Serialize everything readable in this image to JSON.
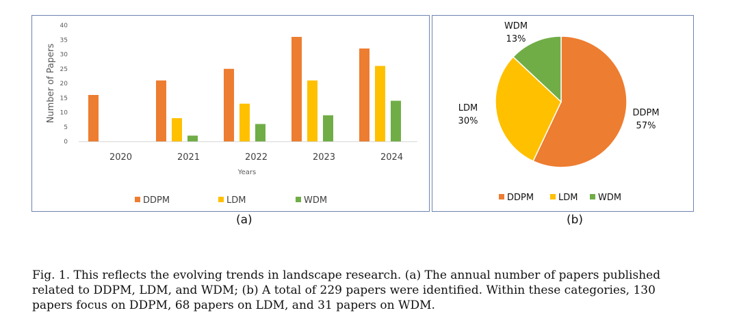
{
  "chart_data": [
    {
      "type": "bar",
      "xlabel": "Years",
      "ylabel": "Number of Papers",
      "ylim": [
        0,
        40
      ],
      "yticks": [
        0,
        5,
        10,
        15,
        20,
        25,
        30,
        35,
        40
      ],
      "categories": [
        "2020",
        "2021",
        "2022",
        "2023",
        "2024"
      ],
      "series": [
        {
          "name": "DDPM",
          "color": "#ed7d31",
          "values": [
            16,
            21,
            25,
            36,
            32
          ]
        },
        {
          "name": "LDM",
          "color": "#ffc000",
          "values": [
            0,
            8,
            13,
            21,
            26
          ]
        },
        {
          "name": "WDM",
          "color": "#70ad47",
          "values": [
            0,
            2,
            6,
            9,
            14
          ]
        }
      ],
      "legend_position": "bottom",
      "grid": false
    },
    {
      "type": "pie",
      "slices": [
        {
          "name": "DDPM",
          "value": 57,
          "label": "DDPM\n57%",
          "color": "#ed7d31"
        },
        {
          "name": "LDM",
          "value": 30,
          "label": "LDM\n30%",
          "color": "#ffc000"
        },
        {
          "name": "WDM",
          "value": 13,
          "label": "WDM\n13%",
          "color": "#70ad47"
        }
      ],
      "legend_position": "bottom"
    }
  ],
  "sublabels": {
    "a": "(a)",
    "b": "(b)"
  },
  "caption": {
    "lines": [
      "Fig. 1.  This reflects the evolving trends in landscape research. (a) The annual number of papers published",
      "related to DDPM, LDM, and WDM; (b) A total of 229 papers were identified. Within these categories, 130",
      "papers focus on DDPM, 68 papers on LDM, and 31 papers on WDM."
    ]
  }
}
